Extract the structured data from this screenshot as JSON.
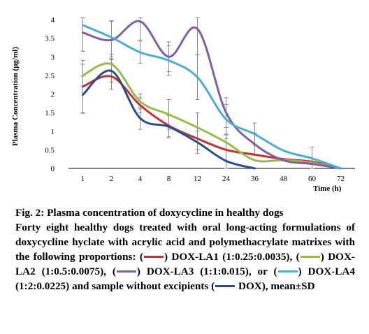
{
  "chart_data": {
    "type": "line",
    "title": "",
    "xlabel": "Time (h)",
    "ylabel": "Plasma Concentration (µg/ml)",
    "categories": [
      "1",
      "2",
      "4",
      "8",
      "12",
      "24",
      "36",
      "48",
      "60",
      "72"
    ],
    "ylim": [
      0,
      4
    ],
    "yticks": [
      "0",
      "0.5",
      "1",
      "1.5",
      "2",
      "2.5",
      "3",
      "3.5",
      "4"
    ],
    "grid": false,
    "legend": "none",
    "series": [
      {
        "name": "DOX-LA1",
        "color": "#c0333a",
        "values": [
          2.2,
          2.47,
          1.7,
          1.15,
          0.8,
          0.5,
          0.37,
          0.25,
          0.18,
          0.0
        ],
        "errors": [
          0.7,
          0.35,
          0.2,
          0.3,
          0.3,
          0.3,
          0,
          0,
          0,
          0
        ]
      },
      {
        "name": "DOX-LA2",
        "color": "#9abb47",
        "values": [
          2.5,
          2.8,
          1.8,
          1.45,
          1.1,
          0.7,
          0.22,
          0.22,
          0.15,
          0.0
        ],
        "errors": [
          0.3,
          0.2,
          0.2,
          0.4,
          0.4,
          0.2,
          0,
          0,
          0,
          0
        ]
      },
      {
        "name": "DOX-LA3",
        "color": "#7f5fa5",
        "values": [
          3.65,
          3.45,
          3.95,
          3.0,
          3.75,
          1.5,
          0.65,
          0.22,
          0.12,
          0.0
        ],
        "errors": [
          0.5,
          0.5,
          0.5,
          0.4,
          0.7,
          0.4,
          0.3,
          0,
          0,
          0
        ]
      },
      {
        "name": "DOX-LA4",
        "color": "#4aaed0",
        "values": [
          3.85,
          3.52,
          3.12,
          2.9,
          2.45,
          1.32,
          0.92,
          0.48,
          0.27,
          0.0
        ],
        "errors": [
          0.7,
          0.45,
          0.3,
          0.4,
          0.6,
          0.4,
          0.3,
          0,
          0.3,
          0
        ]
      },
      {
        "name": "DOX",
        "color": "#2b4e86",
        "values": [
          1.98,
          2.62,
          1.35,
          1.12,
          0.7,
          0.2,
          0.0,
          null,
          null,
          null
        ],
        "errors": [
          0.5,
          0.3,
          0.3,
          0.3,
          0.3,
          0.3,
          0,
          0,
          0,
          0
        ]
      }
    ]
  },
  "caption": {
    "title": "Fig. 2: Plasma concentration of doxycycline in healthy dogs",
    "body_intro": "Forty eight healthy dogs treated with oral long-acting formulations of doxycycline hyclate with acrylic acid and polymethacrylate matrixes with the following proportions:",
    "items": [
      {
        "text": "DOX-LA1 (1:0.25:0.0035),",
        "color": "#c0333a"
      },
      {
        "text": "DOX-LA2 (1:0.5:0.0075),",
        "color": "#9abb47"
      },
      {
        "text": "DOX-LA3 (1:1:0.015), or",
        "color": "#7f5fa5"
      },
      {
        "text": "DOX-LA4 (1:2:0.0225) and sample without excipients",
        "color": "#4aaed0"
      },
      {
        "text": "DOX),",
        "color": "#2b4e86"
      }
    ],
    "tail": "mean±SD"
  }
}
